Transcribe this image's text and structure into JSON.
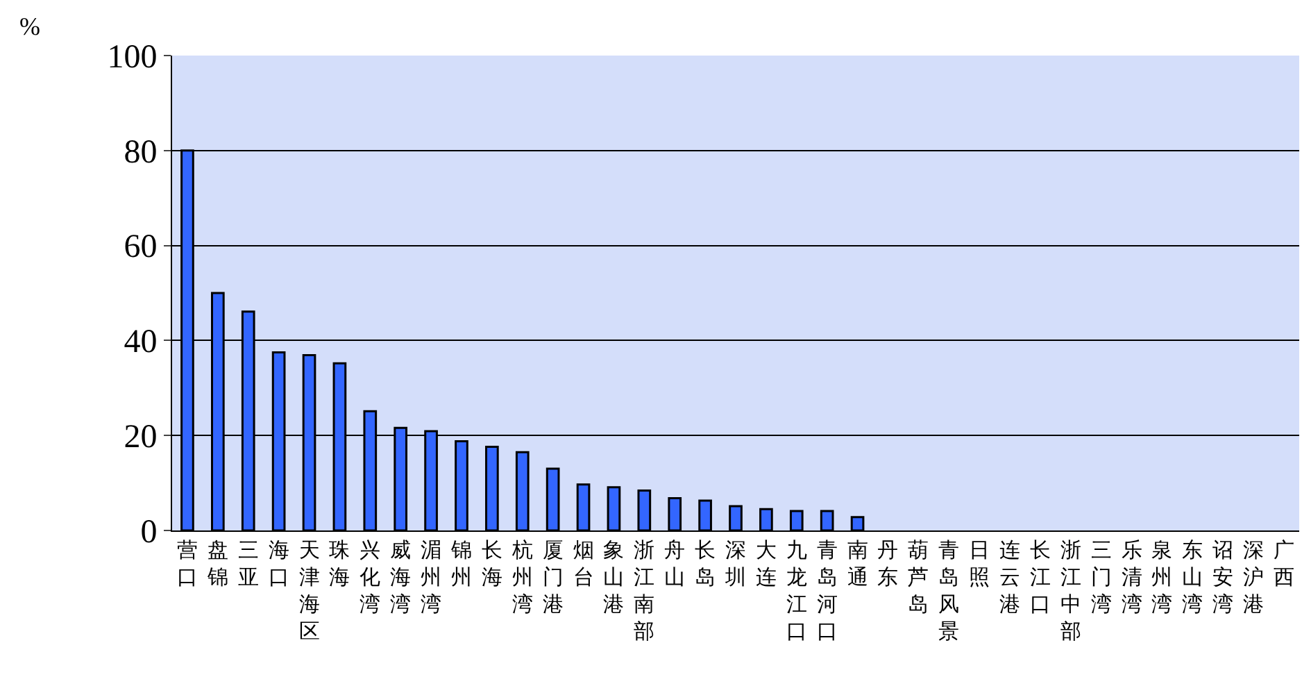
{
  "chart_data": {
    "type": "bar",
    "ylabel": "%",
    "categories": [
      "营口",
      "盘锦",
      "三亚",
      "海口",
      "天津海区",
      "珠海",
      "兴化湾",
      "威海湾",
      "湄州湾",
      "锦州",
      "长海",
      "杭州湾",
      "厦门港",
      "烟台",
      "象山港",
      "浙江南部",
      "舟山",
      "长岛",
      "深圳",
      "大连",
      "九龙江口",
      "青岛河口",
      "南通",
      "丹东",
      "葫芦岛",
      "青岛风景",
      "日照",
      "连云港",
      "长江口",
      "浙江中部",
      "三门湾",
      "乐清湾",
      "泉州湾",
      "东山湾",
      "诏安湾",
      "深沪港",
      "广西"
    ],
    "values": [
      80,
      50,
      46.1,
      37.5,
      36.9,
      35.2,
      25.1,
      21.6,
      20.9,
      18.8,
      17.6,
      16.5,
      13,
      9.7,
      9.1,
      8.4,
      6.8,
      6.3,
      5.1,
      4.5,
      4.1,
      4.1,
      2.8,
      0,
      0,
      0,
      0,
      0,
      0,
      0,
      0,
      0,
      0,
      0,
      0,
      0,
      0
    ],
    "color": "#3366ff",
    "ylim": [
      0,
      100
    ],
    "yticks": [
      0,
      20,
      40,
      60,
      80,
      100
    ],
    "grid": "y"
  }
}
